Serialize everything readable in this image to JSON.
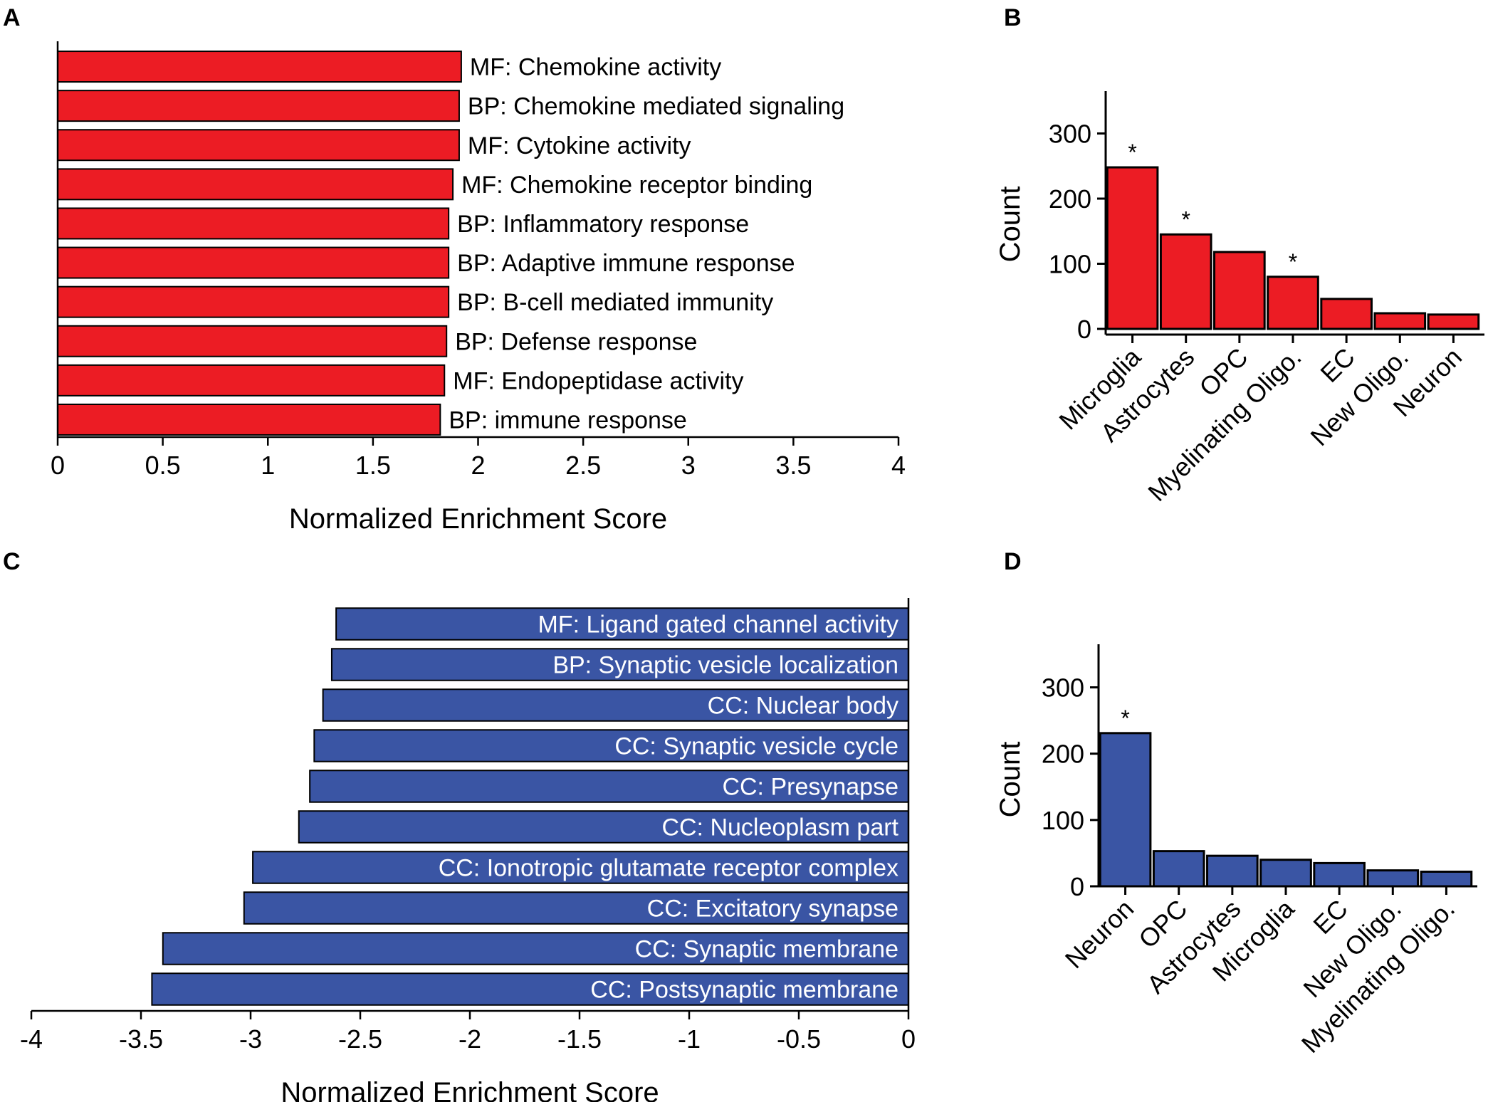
{
  "chart_data": [
    {
      "panel": "A",
      "type": "bar",
      "orientation": "horizontal",
      "color": "#ec1c24",
      "categories": [
        "MF: Chemokine activity",
        "BP: Chemokine mediated signaling",
        "MF: Cytokine activity",
        "MF: Chemokine receptor binding",
        "BP: Inflammatory response",
        "BP: Adaptive immune response",
        "BP: B-cell mediated immunity",
        "BP: Defense response",
        "MF: Endopeptidase activity",
        "BP: immune response"
      ],
      "values": [
        1.92,
        1.91,
        1.91,
        1.88,
        1.86,
        1.86,
        1.86,
        1.85,
        1.84,
        1.82
      ],
      "xlabel": "Normalized Enrichment Score",
      "xlim": [
        0,
        4
      ],
      "xticks": [
        0,
        0.5,
        1,
        1.5,
        2,
        2.5,
        3,
        3.5,
        4
      ],
      "xtick_labels": [
        "0",
        "0.5",
        "1",
        "1.5",
        "2",
        "2.5",
        "3",
        "3.5",
        "4"
      ]
    },
    {
      "panel": "B",
      "type": "bar",
      "orientation": "vertical",
      "color": "#ec1c24",
      "categories": [
        "Microglia",
        "Astrocytes",
        "OPC",
        "Myelinating Oligo.",
        "EC",
        "New Oligo.",
        "Neuron"
      ],
      "values": [
        248,
        145,
        118,
        80,
        46,
        24,
        22
      ],
      "significant": [
        true,
        true,
        false,
        true,
        false,
        false,
        false
      ],
      "sig_marker": "*",
      "ylabel": "Count",
      "ylim": [
        0,
        365
      ],
      "yticks": [
        0,
        100,
        200,
        300
      ],
      "ytick_labels": [
        "0",
        "100",
        "200",
        "300"
      ]
    },
    {
      "panel": "C",
      "type": "bar",
      "orientation": "horizontal",
      "color": "#3a55a4",
      "categories": [
        "MF: Ligand gated channel activity",
        "BP: Synaptic vesicle localization",
        "CC: Nuclear body",
        "CC: Synaptic vesicle cycle",
        "CC: Presynapse",
        "CC: Nucleoplasm part",
        "CC: Ionotropic glutamate receptor complex",
        "CC: Excitatory synapse",
        "CC: Synaptic membrane",
        "CC: Postsynaptic membrane"
      ],
      "values": [
        -2.61,
        -2.63,
        -2.67,
        -2.71,
        -2.73,
        -2.78,
        -2.99,
        -3.03,
        -3.4,
        -3.45
      ],
      "xlabel": "Normalized Enrichment Score",
      "xlim": [
        -4,
        0
      ],
      "xticks": [
        -4,
        -3.5,
        -3,
        -2.5,
        -2,
        -1.5,
        -1,
        -0.5,
        0
      ],
      "xtick_labels": [
        "-4",
        "-3.5",
        "-3",
        "-2.5",
        "-2",
        "-1.5",
        "-1",
        "-0.5",
        "0"
      ]
    },
    {
      "panel": "D",
      "type": "bar",
      "orientation": "vertical",
      "color": "#3a55a4",
      "categories": [
        "Neuron",
        "OPC",
        "Astrocytes",
        "Microglia",
        "EC",
        "New Oligo.",
        "Myelinating Oligo."
      ],
      "values": [
        231,
        53,
        46,
        40,
        35,
        24,
        22
      ],
      "significant": [
        true,
        false,
        false,
        false,
        false,
        false,
        false
      ],
      "sig_marker": "*",
      "ylabel": "Count",
      "ylim": [
        0,
        365
      ],
      "yticks": [
        0,
        100,
        200,
        300
      ],
      "ytick_labels": [
        "0",
        "100",
        "200",
        "300"
      ]
    }
  ]
}
